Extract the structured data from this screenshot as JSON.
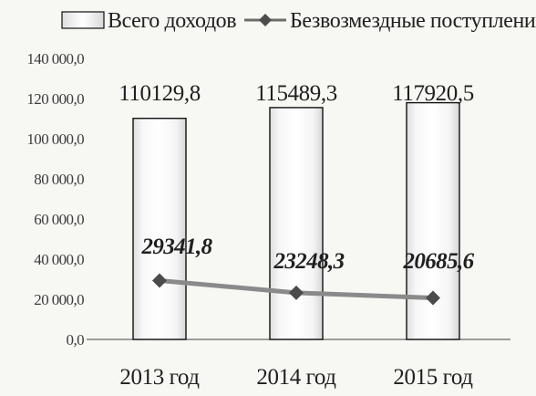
{
  "chart_data": {
    "type": "bar",
    "categories": [
      "2013 год",
      "2014 год",
      "2015 год"
    ],
    "series": [
      {
        "name": "Всего доходов",
        "type": "bar",
        "values": [
          110129.8,
          115489.3,
          117920.5
        ],
        "labels": [
          "110129,8",
          "115489,3",
          "117920,5"
        ],
        "color": "#ffffff"
      },
      {
        "name": "Безвозмездные поступления",
        "type": "line",
        "values": [
          29341.8,
          23248.3,
          20685.6
        ],
        "labels": [
          "29341,8",
          "23248,3",
          "20685,6"
        ],
        "color": "#8a8a8a"
      }
    ],
    "ylim": [
      0,
      140000
    ],
    "yticks": [
      "0,0",
      "20 000,0",
      "40 000,0",
      "60 000,0",
      "80 000,0",
      "100 000,0",
      "120 000,0",
      "140 000,0"
    ],
    "legend": "top",
    "grid": false,
    "title": "",
    "xlabel": "",
    "ylabel": ""
  }
}
